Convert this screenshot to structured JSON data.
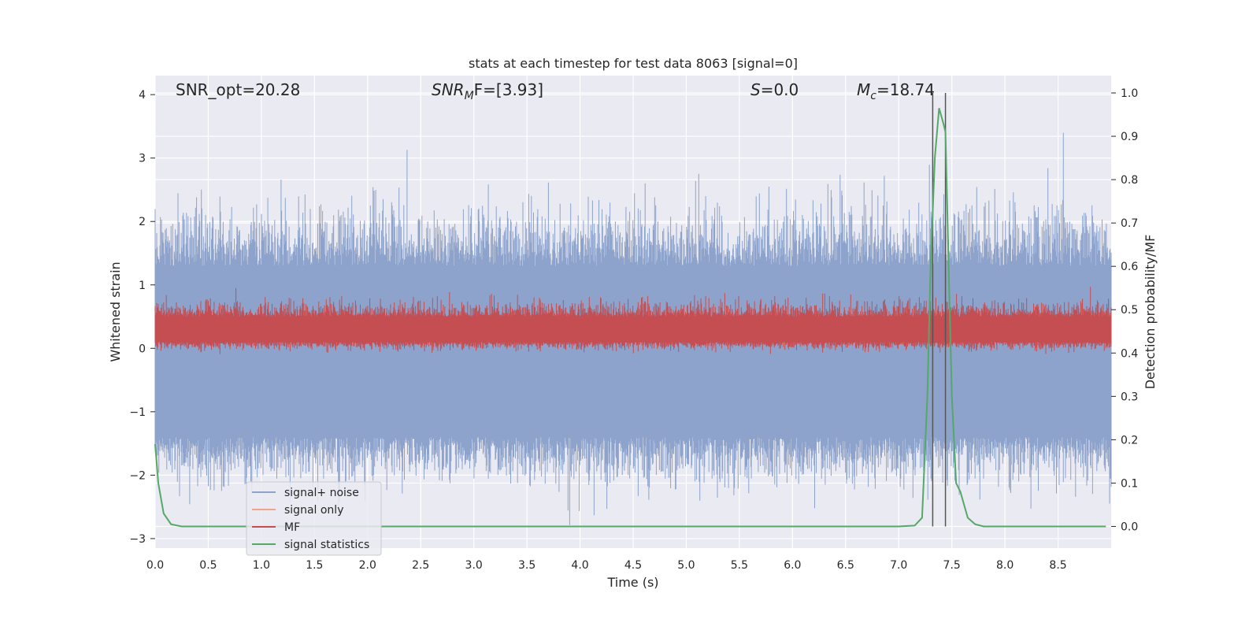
{
  "chart_data": {
    "type": "line",
    "title": "stats at each timestep for test data 8063 [signal=0]",
    "xlabel": "Time (s)",
    "ylabel": "Whitened strain",
    "ylabel_right": "Detection probability/MF",
    "xlim": [
      0.0,
      9.0
    ],
    "ylim": [
      -3.15,
      4.3
    ],
    "ylim_right": [
      -0.05,
      1.04
    ],
    "x_ticks": [
      "0.0",
      "0.5",
      "1.0",
      "1.5",
      "2.0",
      "2.5",
      "3.0",
      "3.5",
      "4.0",
      "4.5",
      "5.0",
      "5.5",
      "6.0",
      "6.5",
      "7.0",
      "7.5",
      "8.0",
      "8.5"
    ],
    "y_ticks": [
      "4",
      "3",
      "2",
      "1",
      "0",
      "−1",
      "−2",
      "−3"
    ],
    "y_right_ticks": [
      "1.0",
      "0.9",
      "0.8",
      "0.7",
      "0.6",
      "0.5",
      "0.4",
      "0.3",
      "0.2",
      "0.1",
      "0.0"
    ],
    "grid": true,
    "annotations": {
      "snr_opt": "SNR_opt=20.28",
      "snr_mf_main": "SNR",
      "snr_mf_sub": "M",
      "snr_mf_rest": "F=[3.93]",
      "s_main": "S",
      "s_rest": "=0.0",
      "mc_main": "M",
      "mc_sub": "c",
      "mc_rest": "=18.74"
    },
    "vertical_lines_s": [
      7.32,
      7.44
    ],
    "series": [
      {
        "name": "signal+ noise",
        "color": "#8ea3cc",
        "description": "whitened noisy strain, roughly in range -2.8 to 4.0, dense noise band around -0.8..1.2",
        "envelope_upper_typical": 1.3,
        "envelope_lower_typical": -1.4
      },
      {
        "name": "signal only",
        "color": "#f0a58a",
        "values": []
      },
      {
        "name": "MF",
        "color": "#c44e52",
        "description": "matched filter output oscillating roughly 0.0 to 0.7 across the whole time range",
        "band_lower": 0.0,
        "band_upper": 0.6
      },
      {
        "name": "signal statistics",
        "color": "#55a868",
        "axis": "right",
        "x": [
          0.0,
          0.03,
          0.08,
          0.15,
          0.25,
          1.0,
          2.0,
          3.0,
          4.0,
          5.0,
          6.0,
          7.0,
          7.15,
          7.22,
          7.27,
          7.3,
          7.34,
          7.38,
          7.42,
          7.44,
          7.47,
          7.5,
          7.54,
          7.58,
          7.65,
          7.72,
          7.8,
          8.0,
          8.5,
          8.95
        ],
        "y": [
          0.19,
          0.1,
          0.03,
          0.005,
          0.0,
          0.0,
          0.0,
          0.0,
          0.0,
          0.0,
          0.0,
          0.0,
          0.002,
          0.02,
          0.3,
          0.6,
          0.85,
          0.965,
          0.93,
          0.91,
          0.6,
          0.3,
          0.1,
          0.08,
          0.02,
          0.005,
          0.0,
          0.0,
          0.0,
          0.0
        ]
      }
    ],
    "legend": {
      "position": "lower-left",
      "entries": [
        "signal+ noise",
        "signal only",
        "MF",
        "signal statistics"
      ]
    }
  }
}
